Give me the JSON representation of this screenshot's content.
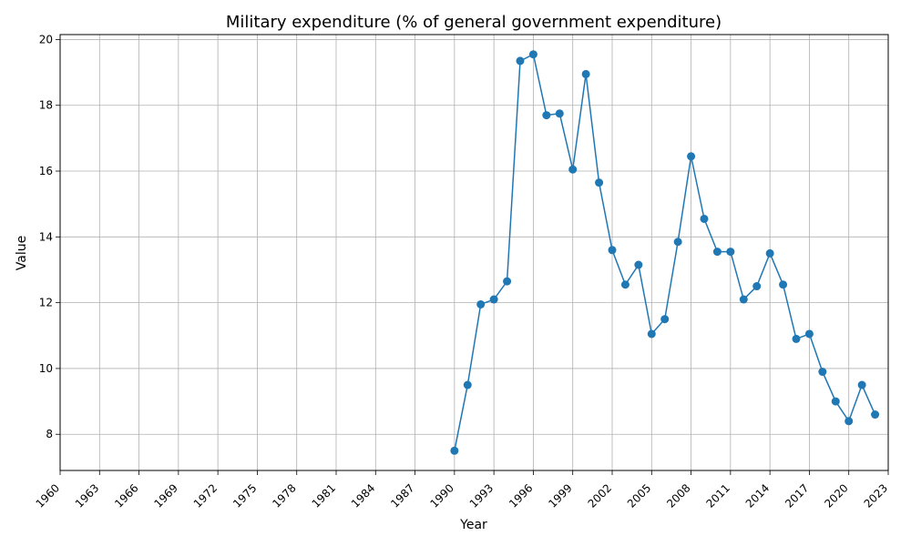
{
  "chart_data": {
    "type": "line",
    "title": "Military expenditure (% of general government expenditure)",
    "xlabel": "Year",
    "ylabel": "Value",
    "xlim": [
      1960,
      2023
    ],
    "ylim": [
      6.9,
      20.15
    ],
    "x_ticks": [
      1960,
      1963,
      1966,
      1969,
      1972,
      1975,
      1978,
      1981,
      1984,
      1987,
      1990,
      1993,
      1996,
      1999,
      2002,
      2005,
      2008,
      2011,
      2014,
      2017,
      2020,
      2023
    ],
    "y_ticks": [
      8,
      10,
      12,
      14,
      16,
      18,
      20
    ],
    "grid": true,
    "line_color": "#1f77b4",
    "series": [
      {
        "x": [
          1990,
          1991,
          1992,
          1993,
          1994,
          1995,
          1996,
          1997,
          1998,
          1999,
          2000,
          2001,
          2002,
          2003,
          2004,
          2005,
          2006,
          2007,
          2008,
          2009,
          2010,
          2011,
          2012,
          2013,
          2014,
          2015,
          2016,
          2017,
          2018,
          2019,
          2020,
          2021,
          2022
        ],
        "values": [
          7.5,
          9.5,
          11.95,
          12.1,
          12.65,
          19.35,
          19.55,
          17.7,
          17.75,
          16.05,
          18.95,
          15.65,
          13.6,
          12.55,
          13.15,
          11.05,
          11.5,
          13.85,
          16.45,
          14.55,
          13.55,
          13.55,
          12.1,
          12.5,
          13.5,
          12.55,
          10.9,
          11.05,
          9.9,
          9.0,
          8.4,
          9.5,
          8.6
        ]
      }
    ]
  }
}
